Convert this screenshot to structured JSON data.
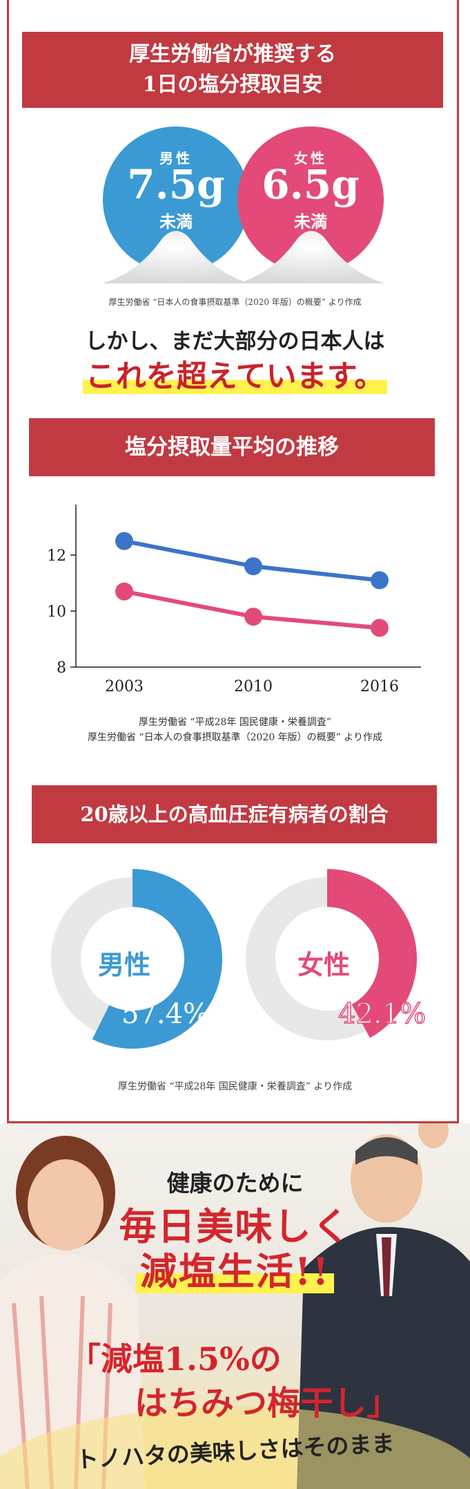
{
  "section1": {
    "title_line1": "厚生労働省が推奨する",
    "title_line2": "1日の塩分摂取目安",
    "male": {
      "label": "男性",
      "value": "7.5g",
      "sub": "未満",
      "color": "#3b9ad3"
    },
    "female": {
      "label": "女性",
      "value": "6.5g",
      "sub": "未満",
      "color": "#e34a78"
    },
    "source": "厚生労働省 “日本人の食事摂取基準（2020 年版）の概要” より作成"
  },
  "headline": {
    "line1": "しかし、まだ大部分の日本人は",
    "line2": "これを超えています。"
  },
  "section2": {
    "title": "塩分摂取量平均の推移",
    "source_line1": "厚生労働省 “平成28年 国民健康・栄養調査”",
    "source_line2": "厚生労働省 “日本人の食事摂取基準（2020 年版）の概要” より作成"
  },
  "chart_data": {
    "type": "line",
    "x": [
      "2003",
      "2010",
      "2016"
    ],
    "yticks": [
      "8",
      "10",
      "12"
    ],
    "ylim": [
      8,
      13.8
    ],
    "series": [
      {
        "values": [
          12.5,
          11.6,
          11.1
        ],
        "color": "#3b74c8"
      },
      {
        "values": [
          10.7,
          9.8,
          9.4
        ],
        "color": "#e34a78"
      }
    ]
  },
  "section3": {
    "title": "20歳以上の高血圧症有病者の割合",
    "male": {
      "label": "男性",
      "percent_text": "57.4%",
      "fraction": 0.574,
      "color": "#3b9ad3"
    },
    "female": {
      "label": "女性",
      "percent_text": "42.1%",
      "fraction": 0.421,
      "color": "#e34a78"
    },
    "source": "厚生労働省 “平成28年 国民健康・栄養調査” より作成"
  },
  "promo": {
    "line1": "健康のために",
    "line2": "毎日美味しく",
    "line3": "減塩生活!!",
    "line4": "「減塩1.5%の",
    "line5": "はちみつ梅干し」",
    "line6": "トノハタの美味しさはそのまま"
  }
}
